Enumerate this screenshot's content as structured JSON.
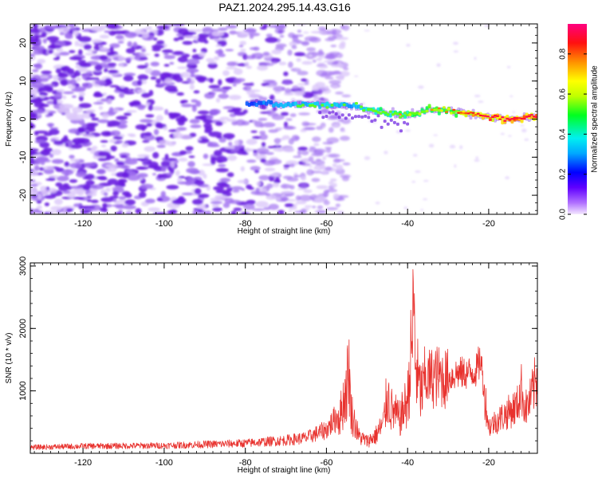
{
  "title": "PAZ1.2024.295.14.43.G16",
  "colors": {
    "snr_line": "#e8322e",
    "spectrum_light": "#dcc8fa",
    "spectrum_mid": "#a070f0",
    "spectrum_dark": "#6a1ee0"
  },
  "chart_data": [
    {
      "type": "heatmap",
      "xlabel": "Height of straight line (km)",
      "ylabel": "Frequency (Hz)",
      "xlim": [
        -133,
        -8
      ],
      "ylim": [
        -25,
        25
      ],
      "x_ticks": [
        -120,
        -100,
        -80,
        -60,
        -40,
        -20
      ],
      "y_ticks": [
        -20,
        -10,
        0,
        10,
        20
      ],
      "colorbar": {
        "label": "Normalized spectral amplitude",
        "range": [
          0,
          0.95
        ],
        "ticks": [
          "0.0",
          "0.2",
          "0.4",
          "0.6",
          "0.8"
        ],
        "tick_values": [
          0,
          0.2,
          0.4,
          0.6,
          0.8
        ],
        "colormap": "rainbow-magenta"
      },
      "signal_trace": {
        "height_km": [
          -80,
          -75,
          -70,
          -65,
          -60,
          -55,
          -50,
          -45,
          -40,
          -35,
          -30,
          -25,
          -20,
          -15,
          -10,
          -8
        ],
        "frequency_hz": [
          4,
          4,
          3.8,
          4,
          3.5,
          3.8,
          2.5,
          1.5,
          1,
          2.5,
          2,
          1.5,
          0.5,
          0,
          0.5,
          0.5
        ],
        "amplitude": [
          0.25,
          0.3,
          0.35,
          0.4,
          0.4,
          0.35,
          0.45,
          0.5,
          0.55,
          0.55,
          0.6,
          0.75,
          0.8,
          0.85,
          0.85,
          0.8
        ]
      },
      "noise_region_km": [
        -133,
        -80
      ]
    },
    {
      "type": "line",
      "xlabel": "Height of straight line (km)",
      "ylabel": "SNR (10 * v/v)",
      "xlim": [
        -133,
        -8
      ],
      "ylim": [
        0,
        3050
      ],
      "x_ticks": [
        -120,
        -100,
        -80,
        -60,
        -40,
        -20
      ],
      "y_ticks": [
        1000,
        2000,
        3000
      ],
      "series": [
        {
          "x": [
            -133,
            -120,
            -100,
            -80,
            -70,
            -65,
            -60,
            -57,
            -55,
            -54.5,
            -54,
            -52,
            -50,
            -48,
            -46,
            -45,
            -44,
            -42,
            -40,
            -39,
            -38.5,
            -38,
            -37,
            -35,
            -33,
            -30,
            -28,
            -25,
            -23,
            -22,
            -21,
            -20,
            -18,
            -15,
            -13,
            -12,
            -11,
            -10,
            -8
          ],
          "y": [
            100,
            120,
            130,
            170,
            220,
            260,
            400,
            650,
            1350,
            1850,
            900,
            350,
            250,
            350,
            600,
            1200,
            900,
            700,
            1100,
            2200,
            3000,
            1800,
            1300,
            1250,
            1300,
            1250,
            1350,
            1350,
            1400,
            1600,
            1000,
            450,
            550,
            700,
            800,
            1100,
            750,
            850,
            1300
          ]
        }
      ]
    }
  ]
}
